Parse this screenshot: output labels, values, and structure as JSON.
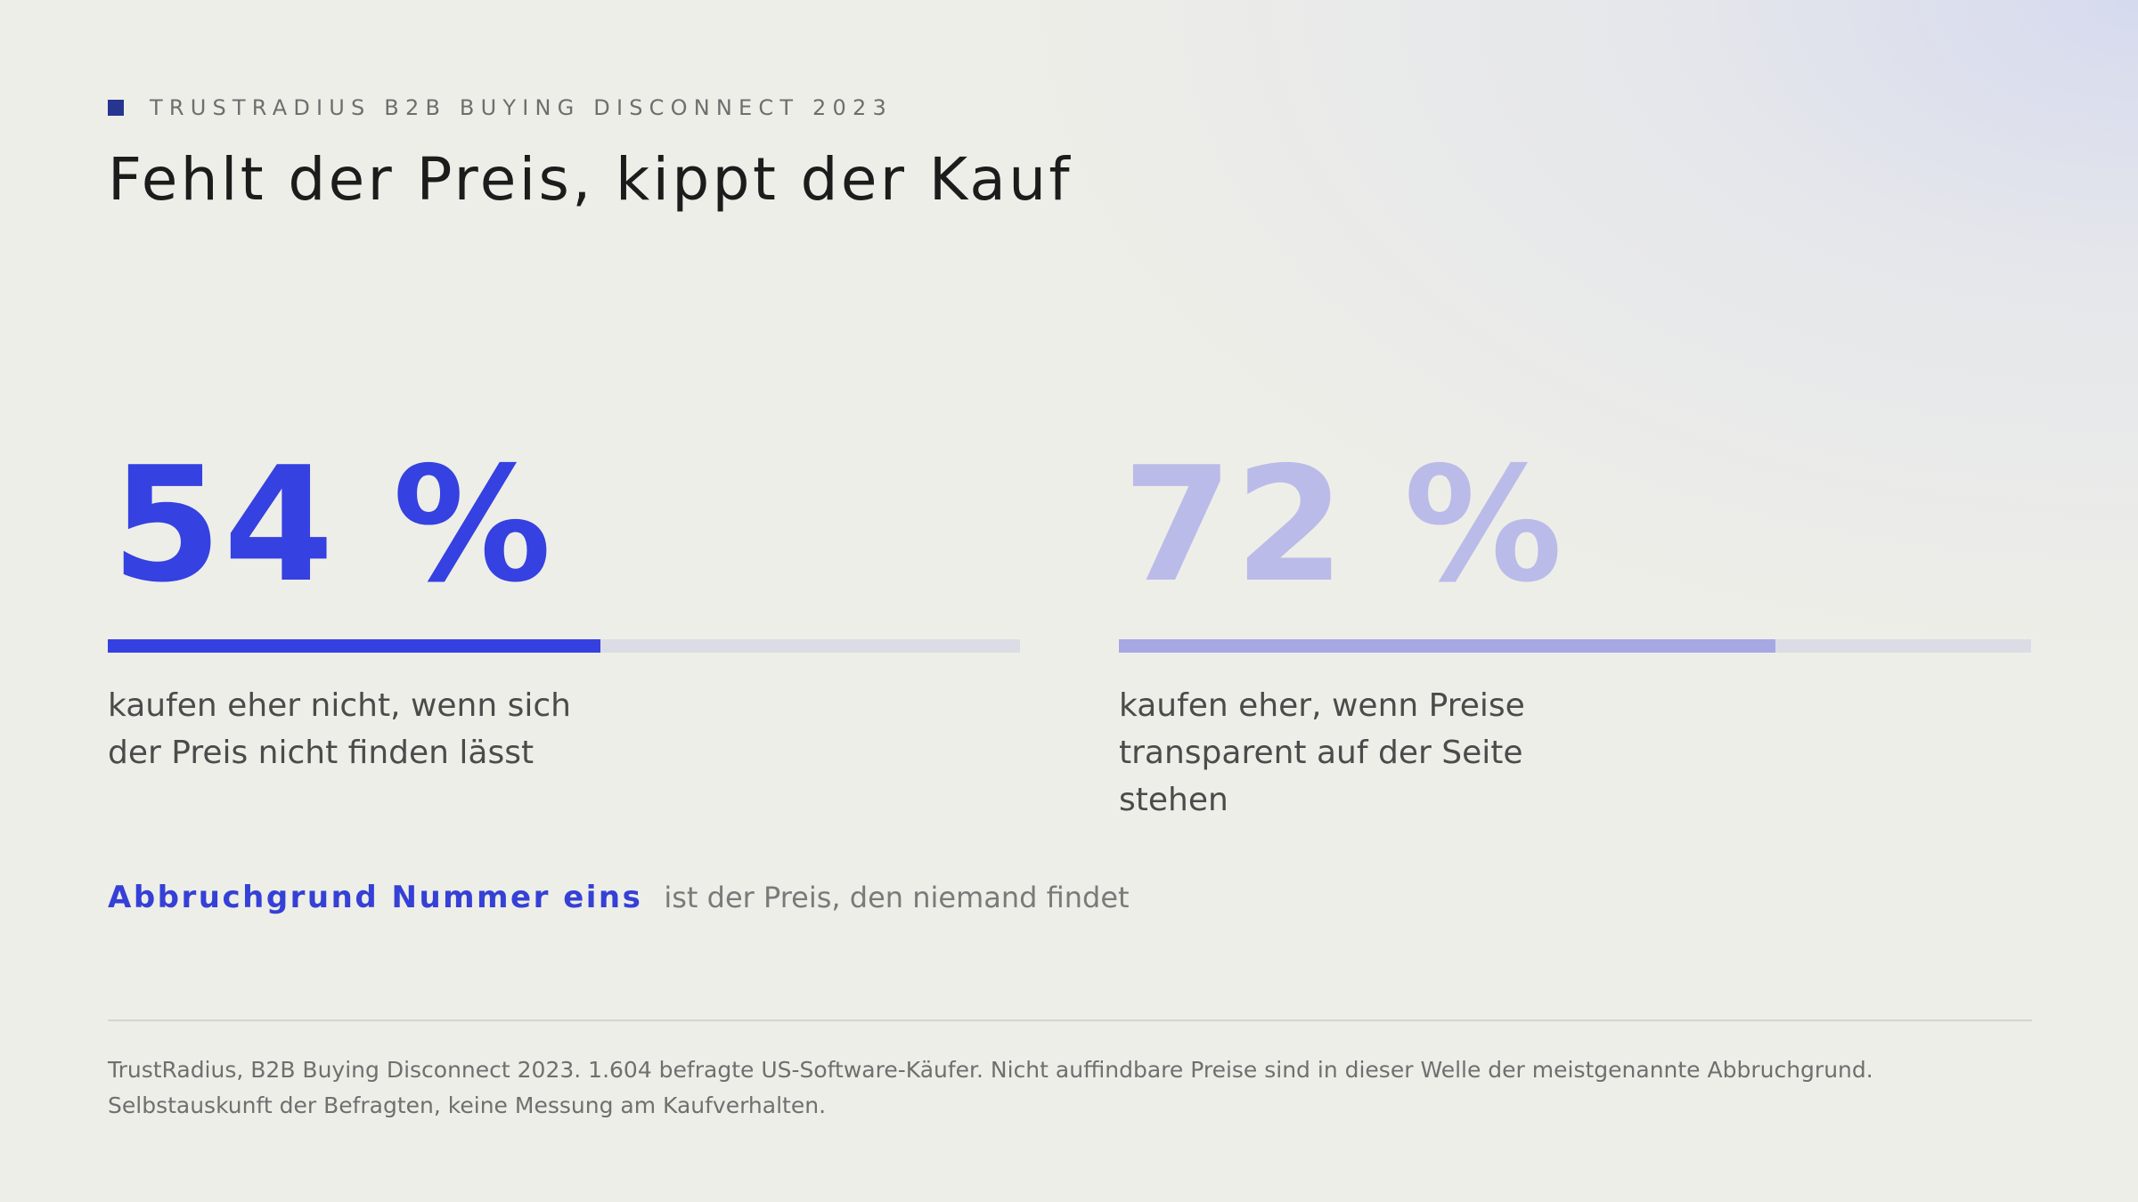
{
  "header": {
    "eyebrow": "TRUSTRADIUS B2B BUYING DISCONNECT 2023",
    "title": "Fehlt der Preis, kippt der Kauf"
  },
  "stats": [
    {
      "value": "54 %",
      "percent": 54,
      "description": "kaufen eher nicht, wenn sich der Preis nicht finden lässt"
    },
    {
      "value": "72 %",
      "percent": 72,
      "description": "kaufen eher, wenn Preise transparent auf der Seite stehen"
    }
  ],
  "callout": {
    "emphasis": "Abbruchgrund Nummer eins",
    "rest": "ist der Preis, den niemand findet"
  },
  "footnote": {
    "line1": "TrustRadius, B2B Buying Disconnect 2023. 1.604 befragte US-Software-Käufer. Nicht auffindbare Preise sind in dieser Welle der meistgenannte Abbruchgrund.",
    "line2": "Selbstauskunft der Befragten, keine Messung am Kaufverhalten."
  },
  "colors": {
    "accent": "#3540e0",
    "accent_light": "#babbe8",
    "eyebrow_square": "#26358f"
  }
}
